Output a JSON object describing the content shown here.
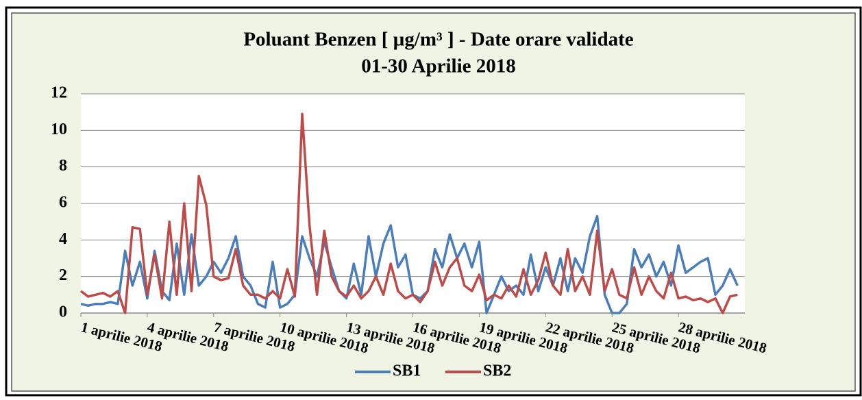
{
  "chart_data": {
    "type": "line",
    "title": "Poluant Benzen [ µg/m³ ] - Date orare validate",
    "subtitle": "01-30 Aprilie 2018",
    "x": [
      1,
      1.33,
      1.67,
      2,
      2.33,
      2.67,
      3,
      3.33,
      3.67,
      4,
      4.33,
      4.67,
      5,
      5.33,
      5.67,
      6,
      6.33,
      6.67,
      7,
      7.33,
      7.67,
      8,
      8.33,
      8.67,
      9,
      9.33,
      9.67,
      10,
      10.33,
      10.67,
      11,
      11.33,
      11.67,
      12,
      12.33,
      12.67,
      13,
      13.33,
      13.67,
      14,
      14.33,
      14.67,
      15,
      15.33,
      15.67,
      16,
      16.33,
      16.67,
      17,
      17.33,
      17.67,
      18,
      18.33,
      18.67,
      19,
      19.33,
      19.67,
      20,
      20.33,
      20.67,
      21,
      21.33,
      21.67,
      22,
      22.33,
      22.67,
      23,
      23.33,
      23.67,
      24,
      24.33,
      24.67,
      25,
      25.33,
      25.67,
      26,
      26.33,
      26.67,
      27,
      27.33,
      27.67,
      28,
      28.33,
      28.67,
      29,
      29.33,
      29.67,
      30,
      30.33,
      30.67
    ],
    "series": [
      {
        "name": "SB1",
        "color": "#4a7ebb",
        "values": [
          0.5,
          0.4,
          0.5,
          0.5,
          0.6,
          0.5,
          3.4,
          1.5,
          2.8,
          0.8,
          3.4,
          1.2,
          0.7,
          3.8,
          1.0,
          4.3,
          1.5,
          2.0,
          2.8,
          2.2,
          3.0,
          4.2,
          2.0,
          1.5,
          0.5,
          0.3,
          2.8,
          0.3,
          0.5,
          1.0,
          4.2,
          3.0,
          2.0,
          3.9,
          2.5,
          1.2,
          0.8,
          2.7,
          1.0,
          4.2,
          2.0,
          3.8,
          4.8,
          2.5,
          3.2,
          1.0,
          0.8,
          1.2,
          3.5,
          2.5,
          4.3,
          3.0,
          3.8,
          2.5,
          3.9,
          0.0,
          1.0,
          2.0,
          1.2,
          1.5,
          1.0,
          3.2,
          1.2,
          2.5,
          1.5,
          3.0,
          1.2,
          3.0,
          2.2,
          4.2,
          5.3,
          1.0,
          0.0,
          0.0,
          0.5,
          3.5,
          2.5,
          3.2,
          2.0,
          2.8,
          1.5,
          3.7,
          2.2,
          2.5,
          2.8,
          3.0,
          1.0,
          1.5,
          2.4,
          1.5
        ]
      },
      {
        "name": "SB2",
        "color": "#be4b48",
        "values": [
          1.2,
          0.9,
          1.0,
          1.1,
          0.9,
          1.2,
          0.0,
          4.7,
          4.6,
          1.0,
          3.2,
          0.8,
          5.0,
          1.0,
          6.0,
          1.2,
          7.5,
          5.9,
          2.0,
          1.8,
          1.9,
          3.5,
          1.5,
          1.0,
          1.0,
          0.8,
          1.2,
          0.8,
          2.4,
          0.9,
          10.9,
          4.8,
          1.0,
          4.5,
          2.0,
          1.2,
          0.9,
          1.5,
          0.8,
          1.2,
          2.0,
          1.0,
          2.7,
          1.2,
          0.8,
          1.0,
          0.6,
          1.2,
          2.8,
          1.5,
          2.5,
          3.0,
          1.5,
          1.2,
          2.1,
          0.7,
          1.0,
          0.8,
          1.5,
          0.9,
          2.4,
          1.0,
          1.8,
          3.3,
          1.5,
          1.0,
          3.5,
          1.2,
          2.0,
          1.0,
          4.5,
          1.2,
          2.4,
          1.0,
          0.8,
          2.5,
          1.0,
          2.0,
          1.2,
          0.8,
          2.2,
          0.8,
          0.9,
          0.7,
          0.8,
          0.6,
          0.8,
          0.0,
          0.9,
          1.0
        ]
      }
    ],
    "xlim": [
      1,
      31
    ],
    "xticks": [
      {
        "value": 1,
        "label": "1 aprilie 2018"
      },
      {
        "value": 4,
        "label": "4 aprilie 2018"
      },
      {
        "value": 7,
        "label": "7 aprilie 2018"
      },
      {
        "value": 10,
        "label": "10 aprilie 2018"
      },
      {
        "value": 13,
        "label": "13 aprilie 2018"
      },
      {
        "value": 16,
        "label": "16 aprilie 2018"
      },
      {
        "value": 19,
        "label": "19 aprilie 2018"
      },
      {
        "value": 22,
        "label": "22 aprilie 2018"
      },
      {
        "value": 25,
        "label": "25 aprilie 2018"
      },
      {
        "value": 28,
        "label": "28 aprilie 2018"
      }
    ],
    "ylim": [
      0,
      12
    ],
    "yticks": [
      0,
      2,
      4,
      6,
      8,
      10,
      12
    ],
    "grid": true,
    "legend": "bottom"
  }
}
